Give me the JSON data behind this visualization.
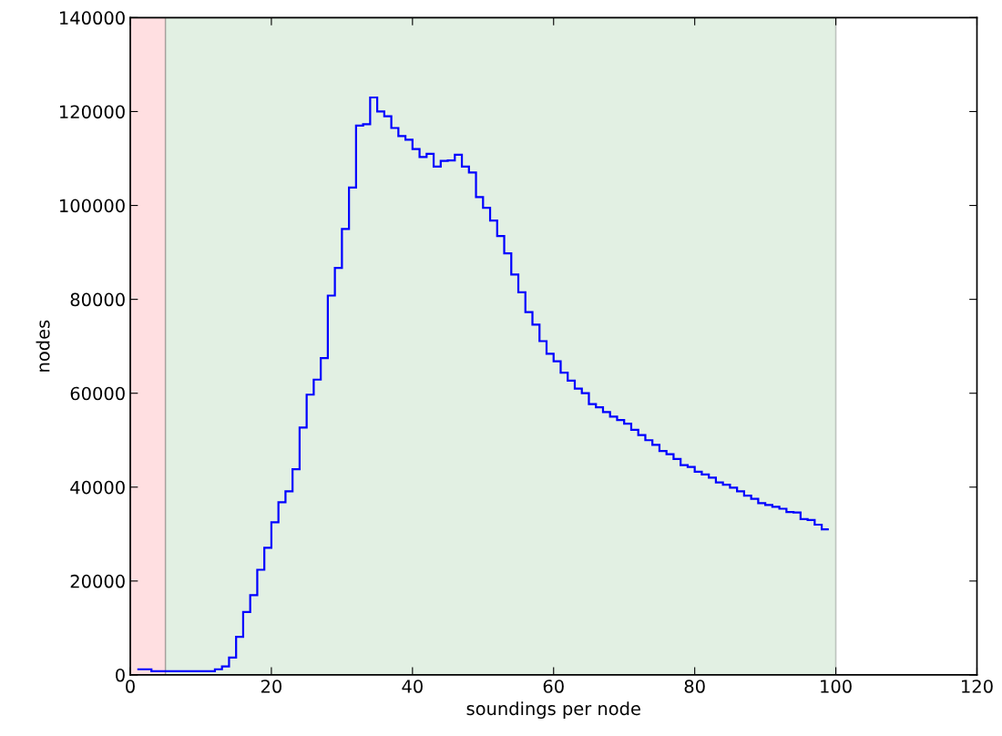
{
  "chart_data": {
    "type": "histogram",
    "xlabel": "soundings per node",
    "ylabel": "nodes",
    "bins": [
      1,
      2,
      3,
      4,
      5,
      6,
      7,
      8,
      9,
      10,
      11,
      12,
      13,
      14,
      15,
      16,
      17,
      18,
      19,
      20,
      21,
      22,
      23,
      24,
      25,
      26,
      27,
      28,
      29,
      30,
      31,
      32,
      33,
      34,
      35,
      36,
      37,
      38,
      39,
      40,
      41,
      42,
      43,
      44,
      45,
      46,
      47,
      48,
      49,
      50,
      51,
      52,
      53,
      54,
      55,
      56,
      57,
      58,
      59,
      60,
      61,
      62,
      63,
      64,
      65,
      66,
      67,
      68,
      69,
      70,
      71,
      72,
      73,
      74,
      75,
      76,
      77,
      78,
      79,
      80,
      81,
      82,
      83,
      84,
      85,
      86,
      87,
      88,
      89,
      90,
      91,
      92,
      93,
      94,
      95,
      96,
      97,
      98,
      99
    ],
    "values": [
      1200,
      1200,
      800,
      800,
      800,
      800,
      800,
      800,
      800,
      800,
      800,
      1200,
      1800,
      3700,
      8100,
      13400,
      17000,
      22400,
      27100,
      32500,
      36800,
      39100,
      43800,
      52700,
      59700,
      62900,
      67500,
      80800,
      86700,
      95000,
      103800,
      117000,
      117300,
      123000,
      120000,
      119000,
      116500,
      114800,
      114000,
      112000,
      110300,
      111000,
      108300,
      109500,
      109600,
      110800,
      108300,
      107000,
      101800,
      99500,
      96800,
      93500,
      89800,
      85300,
      81500,
      77300,
      74600,
      71100,
      68400,
      66800,
      64400,
      62700,
      61000,
      60000,
      57700,
      57000,
      56000,
      55000,
      54300,
      53500,
      52200,
      51100,
      50000,
      49000,
      47700,
      47000,
      46000,
      44700,
      44300,
      43300,
      42700,
      42000,
      41000,
      40500,
      39900,
      39100,
      38200,
      37500,
      36600,
      36200,
      35800,
      35400,
      34700,
      34600,
      33200,
      33000,
      32000,
      31000
    ],
    "color": "#0000ff",
    "bands": [
      {
        "axis": "x",
        "from": 0,
        "to": 5,
        "color": "#ffdfe1"
      },
      {
        "axis": "x",
        "from": 5,
        "to": 100,
        "color": "#e2f0e3"
      }
    ],
    "xlim": [
      0,
      120
    ],
    "xticks": [
      0,
      20,
      40,
      60,
      80,
      100,
      120
    ],
    "ylim": [
      0,
      140000
    ],
    "yticks": [
      0,
      20000,
      40000,
      60000,
      80000,
      100000,
      120000,
      140000
    ],
    "grid": false
  }
}
